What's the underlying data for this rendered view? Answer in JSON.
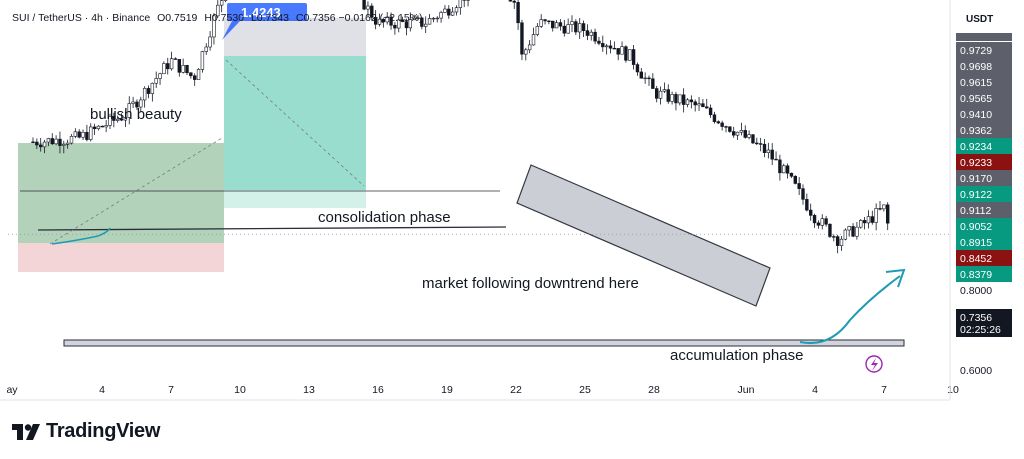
{
  "header": {
    "symbol": "SUI / TetherUS",
    "interval": "4h",
    "exchange": "Binance",
    "open_label": "O",
    "open": "0.7519",
    "high_label": "H",
    "high": "0.7530",
    "low_label": "L",
    "low": "0.7343",
    "close_label": "C",
    "close": "0.7356",
    "change": "−0.0162 (−2.15%)"
  },
  "currency": "USDT",
  "brand": "TradingView",
  "colors": {
    "up": "#131722",
    "down": "#131722",
    "green_zone": "#99c3a3",
    "red_zone": "#f3d0d3",
    "teal_zone": "#86d7c4",
    "grey_zone": "#dcdee3",
    "arrow": "#1e9bb5",
    "label_dark": "#5d606b",
    "label_green": "#089981",
    "label_red": "#8c1111",
    "badge_blue": "#2962ff",
    "lightning": "#9c27b0"
  },
  "annotations": {
    "bullish": "bullish beauty",
    "consolidation": "consolidation phase",
    "downtrend": "market following downtrend here",
    "accumulation": "accumulation phase",
    "high_badge": "1.4243"
  },
  "chart_data": {
    "type": "candlestick",
    "title": "SUI / TetherUS · 4h · Binance",
    "y_scale": "log",
    "x_tick_labels": [
      "ay",
      "4",
      "7",
      "10",
      "13",
      "16",
      "19",
      "22",
      "25",
      "28",
      "Jun",
      "4",
      "7",
      "10"
    ],
    "y_axis_labels": [
      {
        "value": 0.9729,
        "style": "dark"
      },
      {
        "value": 0.9698,
        "style": "dark"
      },
      {
        "value": 0.9615,
        "style": "dark"
      },
      {
        "value": 0.9565,
        "style": "dark"
      },
      {
        "value": 0.941,
        "style": "dark"
      },
      {
        "value": 0.9362,
        "style": "dark"
      },
      {
        "value": 0.9234,
        "style": "green"
      },
      {
        "value": 0.9233,
        "style": "red"
      },
      {
        "value": 0.917,
        "style": "dark"
      },
      {
        "value": 0.9122,
        "style": "green"
      },
      {
        "value": 0.9112,
        "style": "dark"
      },
      {
        "value": 0.9052,
        "style": "green"
      },
      {
        "value": 0.8915,
        "style": "green"
      },
      {
        "value": 0.8452,
        "style": "red"
      },
      {
        "value": 0.8379,
        "style": "green"
      },
      {
        "value": 0.8,
        "style": "plain"
      },
      {
        "value": 0.7356,
        "style": "black"
      },
      {
        "value": 0.6,
        "style": "plain"
      }
    ],
    "countdown": "02:25:26",
    "last_price": 0.7356,
    "anchors": [
      {
        "x": "May 1",
        "close": 0.845
      },
      {
        "x": "May 3",
        "close": 0.85
      },
      {
        "x": "May 5",
        "close": 0.88
      },
      {
        "x": "May 7",
        "close": 0.955
      },
      {
        "x": "May 8",
        "close": 0.93
      },
      {
        "x": "May 9",
        "close": 1.03
      },
      {
        "x": "May 10",
        "close": 1.12
      },
      {
        "x": "May 10",
        "close": 1.4243
      },
      {
        "x": "May 11",
        "close": 1.31
      },
      {
        "x": "May 13",
        "close": 1.21
      },
      {
        "x": "May 15",
        "close": 1.06
      },
      {
        "x": "May 16",
        "close": 1.01
      },
      {
        "x": "May 18",
        "close": 1.01
      },
      {
        "x": "May 19",
        "close": 1.03
      },
      {
        "x": "May 21",
        "close": 1.09
      },
      {
        "x": "May 22",
        "close": 1.04
      },
      {
        "x": "May 22",
        "close": 0.96
      },
      {
        "x": "May 23",
        "close": 1.01
      },
      {
        "x": "May 25",
        "close": 1.0
      },
      {
        "x": "May 27",
        "close": 0.96
      },
      {
        "x": "May 28",
        "close": 0.91
      },
      {
        "x": "May 30",
        "close": 0.89
      },
      {
        "x": "Jun 1",
        "close": 0.85
      },
      {
        "x": "Jun 2",
        "close": 0.83
      },
      {
        "x": "Jun 3",
        "close": 0.795
      },
      {
        "x": "Jun 4",
        "close": 0.755
      },
      {
        "x": "Jun 5",
        "close": 0.73
      },
      {
        "x": "Jun 6",
        "close": 0.745
      },
      {
        "x": "Jun 7",
        "close": 0.765
      },
      {
        "x": "Jun 7",
        "close": 0.7356
      }
    ]
  }
}
